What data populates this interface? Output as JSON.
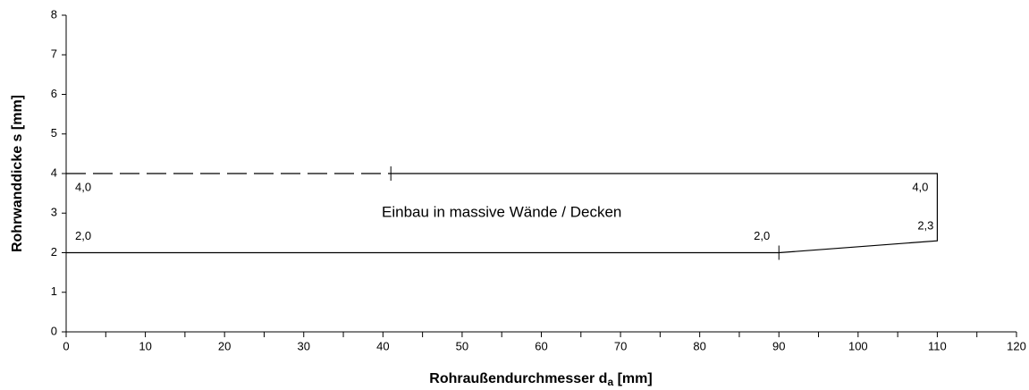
{
  "chart_data": {
    "type": "line",
    "ylabel": "Rohrwanddicke s [mm]",
    "xlabel": {
      "text": "Rohraußendurchmesser d",
      "subscript": "a",
      "suffix": " [mm]"
    },
    "xlim": [
      0,
      120
    ],
    "xticks": [
      0,
      10,
      20,
      30,
      40,
      50,
      60,
      70,
      80,
      90,
      100,
      110,
      120
    ],
    "xminorticks": [
      5,
      15,
      25,
      35,
      45,
      55,
      65,
      75,
      85,
      95,
      105,
      115
    ],
    "ylim": [
      0,
      8
    ],
    "yticks": [
      0,
      1,
      2,
      3,
      4,
      5,
      6,
      7,
      8
    ],
    "color": "#000000",
    "series": [
      {
        "style": "dashed",
        "x": [
          0,
          41
        ],
        "values": [
          4,
          4
        ]
      },
      {
        "style": "solid",
        "x": [
          41,
          110,
          110,
          90,
          0
        ],
        "values": [
          4,
          4,
          2.3,
          2,
          2
        ]
      }
    ],
    "crossmarks": [
      {
        "x": 41,
        "y": 4
      },
      {
        "x": 90,
        "y": 2
      }
    ],
    "point_labels": [
      {
        "x": 0,
        "y": 4,
        "label": "4,0"
      },
      {
        "x": 0,
        "y": 2,
        "label": "2,0"
      },
      {
        "x": 90,
        "y": 2,
        "label": "2,0"
      },
      {
        "x": 110,
        "y": 4,
        "label": "4,0"
      },
      {
        "x": 110,
        "y": 2.3,
        "label": "2,3"
      }
    ],
    "annotation": {
      "text": "Einbau in massive Wände / Decken",
      "x": 55,
      "y": 3
    }
  }
}
